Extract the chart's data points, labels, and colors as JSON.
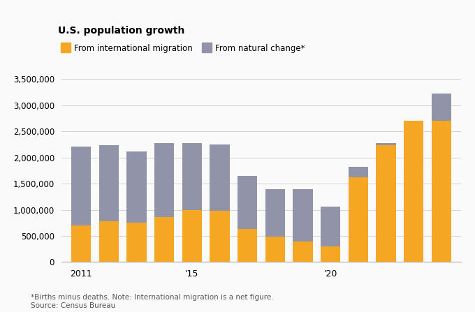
{
  "title": "U.S. population growth",
  "years": [
    2011,
    2012,
    2013,
    2014,
    2015,
    2016,
    2017,
    2018,
    2019,
    2020,
    2021,
    2022,
    2023,
    2024
  ],
  "migration": [
    700000,
    780000,
    760000,
    860000,
    1000000,
    980000,
    640000,
    490000,
    400000,
    300000,
    1620000,
    2230000,
    2700000,
    2700000
  ],
  "natural": [
    1510000,
    1450000,
    1350000,
    1420000,
    1280000,
    1270000,
    1010000,
    900000,
    1000000,
    760000,
    200000,
    50000,
    0,
    530000
  ],
  "migration_color": "#F5A623",
  "natural_color": "#9194A8",
  "background_color": "#FAFAFA",
  "grid_color": "#CCCCCC",
  "legend_label_migration": "From international migration",
  "legend_label_natural": "From natural change*",
  "footnote": "*Births minus deaths. Note: International migration is a net figure.",
  "source": "Source: Census Bureau",
  "xlabels_show": [
    "2011",
    "'15",
    "'20"
  ],
  "xlabels_pos": [
    2011,
    2015,
    2020
  ],
  "yticks": [
    0,
    500000,
    1000000,
    1500000,
    2000000,
    2500000,
    3000000,
    3500000
  ],
  "ylim": [
    0,
    3700000
  ],
  "bar_width": 0.72
}
